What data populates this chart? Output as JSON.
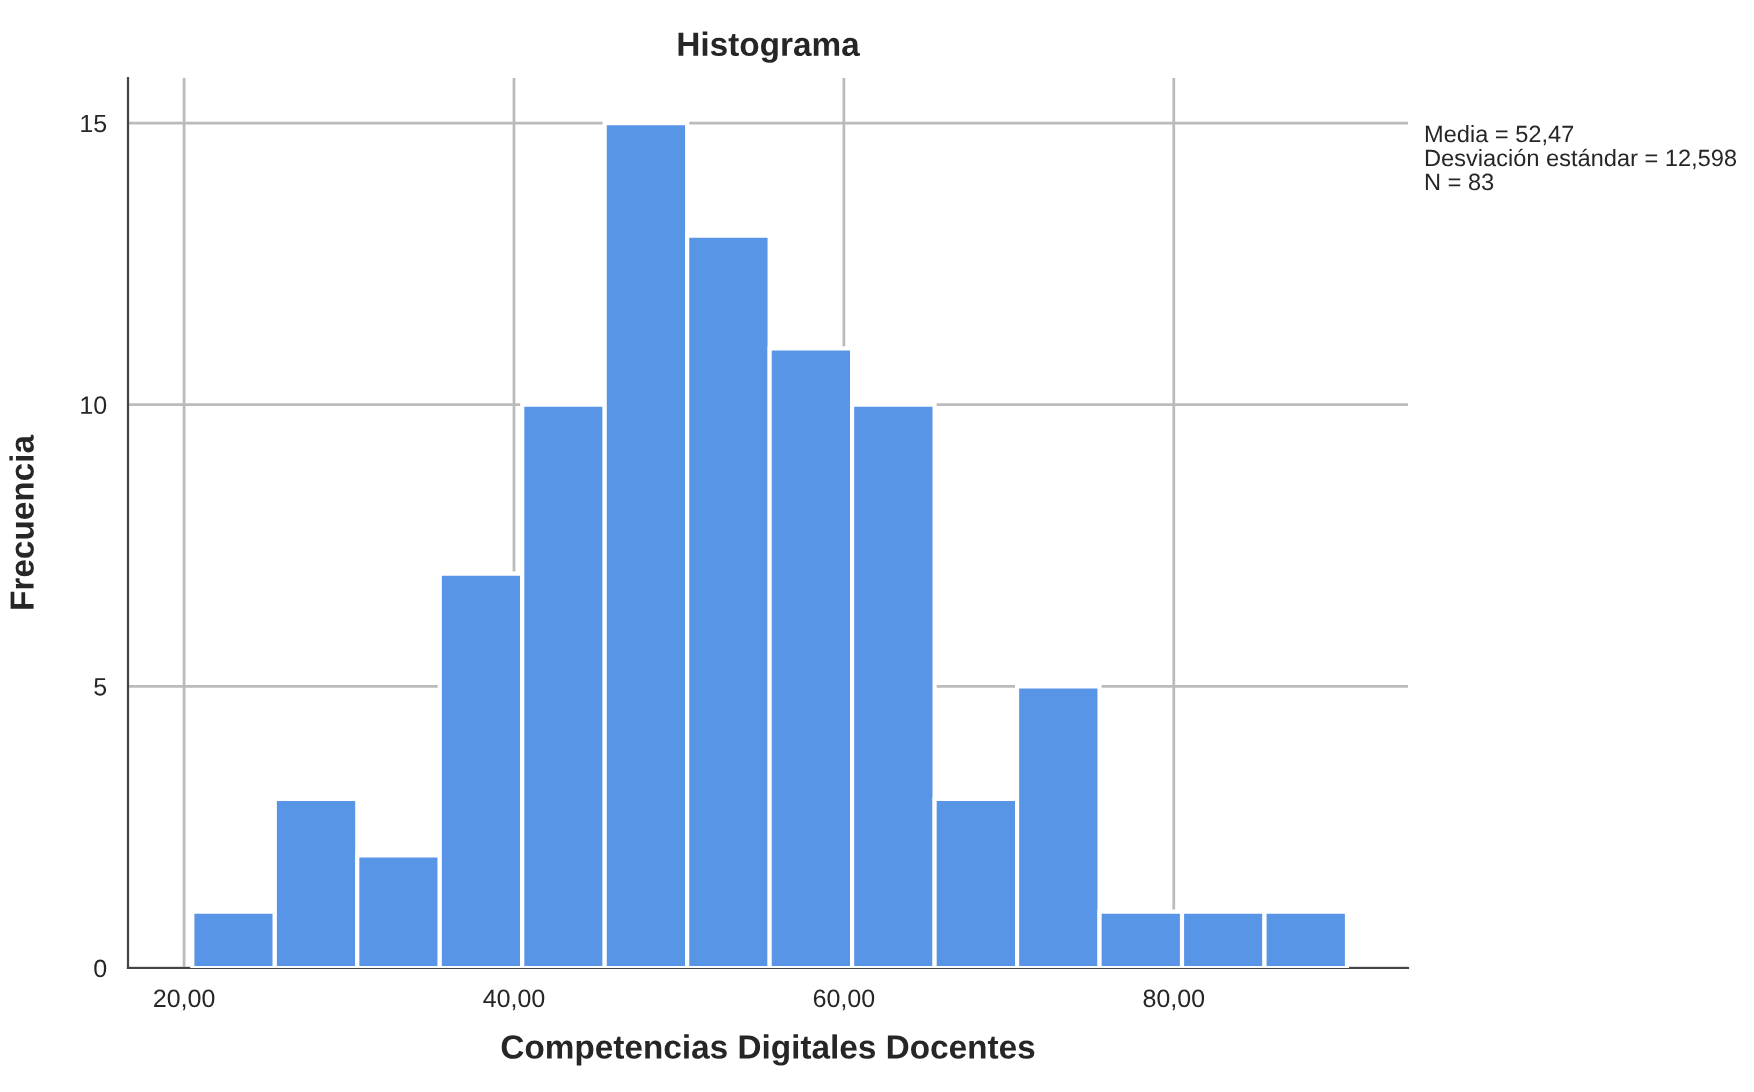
{
  "chart_data": {
    "type": "histogram",
    "title": "Histograma",
    "xlabel": "Competencias Digitales Docentes",
    "ylabel": "Frecuencia",
    "bins": [
      20.5,
      25.5,
      30.5,
      35.5,
      40.5,
      45.5,
      50.5,
      55.5,
      60.5,
      65.5,
      70.5,
      75.5,
      80.5,
      85.5,
      90.5
    ],
    "values": [
      1,
      3,
      2,
      7,
      10,
      15,
      13,
      11,
      10,
      3,
      5,
      1,
      1,
      1
    ],
    "color": "#5895e6",
    "xlim": [
      16.6,
      94.2
    ],
    "ylim": [
      0,
      15.8
    ],
    "xticks": [
      {
        "value": 20,
        "label": "20,00"
      },
      {
        "value": 40,
        "label": "40,00"
      },
      {
        "value": 60,
        "label": "60,00"
      },
      {
        "value": 80,
        "label": "80,00"
      }
    ],
    "yticks": [
      0,
      5,
      10,
      15
    ],
    "grid": true,
    "annotations": [
      "Media = 52,47",
      "Desviación estándar = 12,598",
      "N = 83"
    ]
  }
}
